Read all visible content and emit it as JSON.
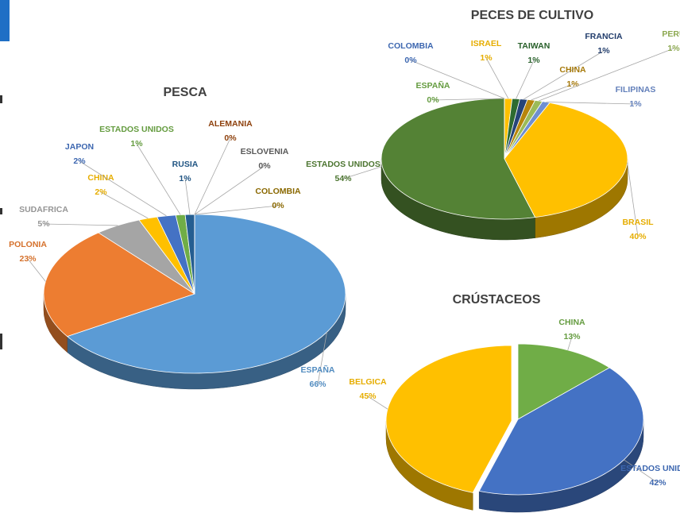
{
  "chart_data": [
    {
      "type": "pie",
      "title": "PESCA",
      "categories": [
        "ESPAÑA",
        "POLONIA",
        "SUDAFRICA",
        "CHINA",
        "JAPON",
        "ESTADOS UNIDOS",
        "RUSIA",
        "ALEMANIA",
        "ESLOVENIA",
        "COLOMBIA"
      ],
      "values": [
        66,
        23,
        5,
        2,
        2,
        1,
        1,
        0,
        0,
        0
      ],
      "value_labels": [
        "66%",
        "23%",
        "5%",
        "2%",
        "2%",
        "1%",
        "1%",
        "0%",
        "0%",
        "0%"
      ],
      "colors": [
        "#5b9bd5",
        "#ed7d31",
        "#a5a5a5",
        "#ffc000",
        "#4472c4",
        "#70ad47",
        "#255e91",
        "#9e480e",
        "#636363",
        "#997300"
      ]
    },
    {
      "type": "pie",
      "title": "PECES DE CULTIVO",
      "categories": [
        "ISRAEL",
        "TAIWAN",
        "FRANCIA",
        "CHINA",
        "PERU",
        "FILIPINAS",
        "BRASIL",
        "ESTADOS UNIDOS",
        "ESPAÑA",
        "COLOMBIA"
      ],
      "values": [
        1,
        1,
        1,
        1,
        1,
        1,
        40,
        54,
        0,
        0
      ],
      "value_labels": [
        "1%",
        "1%",
        "1%",
        "1%",
        "1%",
        "1%",
        "40%",
        "54%",
        "0%",
        "0%"
      ],
      "colors": [
        "#ffc000",
        "#2e6b30",
        "#264478",
        "#b8860b",
        "#9bbb59",
        "#6f8fd0",
        "#ffc000",
        "#548235",
        "#70ad47",
        "#4472c4"
      ]
    },
    {
      "type": "pie",
      "title": "CRÚSTACEOS",
      "categories": [
        "CHINA",
        "ESTADOS UNIDOS",
        "BELGICA"
      ],
      "values": [
        13,
        42,
        45
      ],
      "value_labels": [
        "13%",
        "42%",
        "45%"
      ],
      "colors": [
        "#70ad47",
        "#4472c4",
        "#ffc000"
      ]
    }
  ]
}
